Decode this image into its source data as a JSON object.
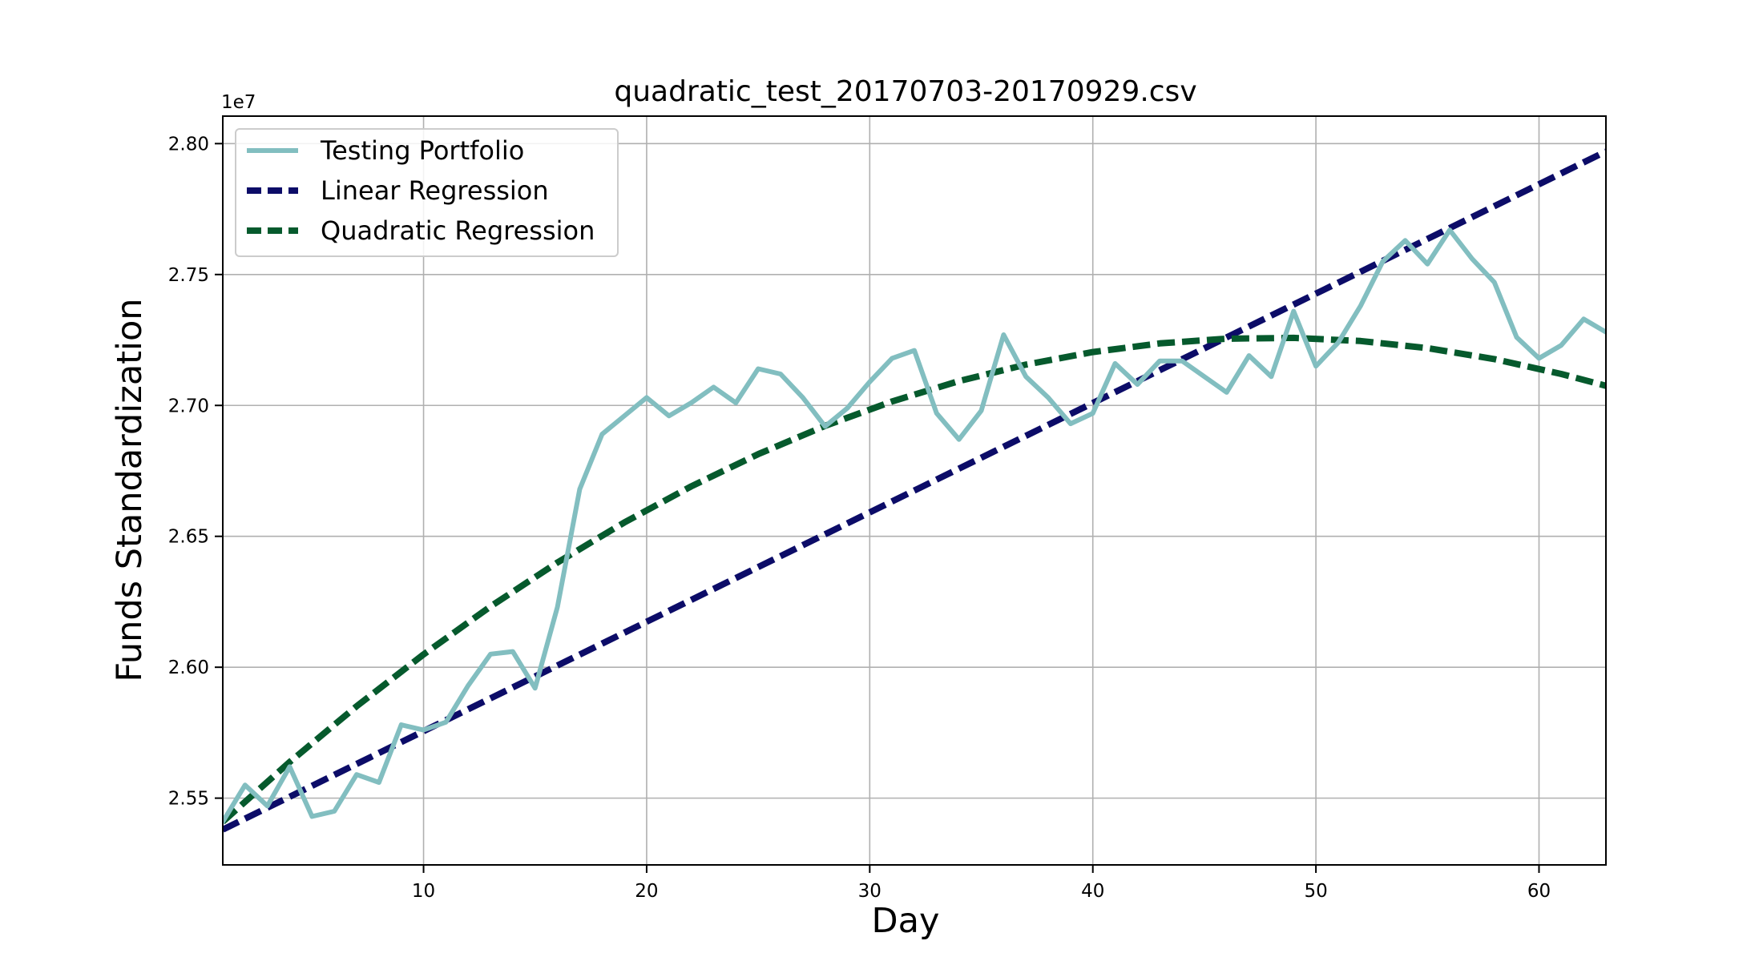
{
  "chart_data": {
    "type": "line",
    "title": "quadratic_test_20170703-20170929.csv",
    "xlabel": "Day",
    "ylabel": "Funds Standardization",
    "y_offset_label": "1e7",
    "xlim": [
      1,
      63
    ],
    "ylim": [
      25.245,
      28.105
    ],
    "x_ticks": [
      10,
      20,
      30,
      40,
      50,
      60
    ],
    "y_ticks": [
      25.5,
      26.0,
      26.5,
      27.0,
      27.5,
      28.0
    ],
    "y_tick_labels": [
      "2.55",
      "2.60",
      "2.65",
      "2.70",
      "2.75",
      "2.80"
    ],
    "grid": true,
    "legend_position": "upper left",
    "series": [
      {
        "name": "Testing Portfolio",
        "style": "solid",
        "color": "#82bec0",
        "x": [
          1,
          2,
          3,
          4,
          5,
          6,
          7,
          8,
          9,
          10,
          11,
          12,
          13,
          14,
          15,
          16,
          17,
          18,
          19,
          20,
          21,
          22,
          23,
          24,
          25,
          26,
          27,
          28,
          29,
          30,
          31,
          32,
          33,
          34,
          35,
          36,
          37,
          38,
          39,
          40,
          41,
          42,
          43,
          44,
          45,
          46,
          47,
          48,
          49,
          50,
          51,
          52,
          53,
          54,
          55,
          56,
          57,
          58,
          59,
          60,
          61,
          62,
          63
        ],
        "values": [
          25.41,
          25.55,
          25.47,
          25.62,
          25.43,
          25.45,
          25.59,
          25.56,
          25.78,
          25.76,
          25.79,
          25.93,
          26.05,
          26.06,
          25.92,
          26.23,
          26.68,
          26.89,
          26.96,
          27.03,
          26.96,
          27.01,
          27.07,
          27.01,
          27.14,
          27.12,
          27.03,
          26.92,
          26.99,
          27.09,
          27.18,
          27.21,
          26.97,
          26.87,
          26.98,
          27.27,
          27.11,
          27.03,
          26.93,
          26.97,
          27.16,
          27.08,
          27.17,
          27.17,
          27.11,
          27.05,
          27.19,
          27.11,
          27.36,
          27.15,
          27.24,
          27.38,
          27.55,
          27.63,
          27.54,
          27.67,
          27.56,
          27.47,
          27.26,
          27.18,
          27.23,
          27.33,
          27.28
        ]
      },
      {
        "name": "Linear Regression",
        "style": "dashed",
        "color": "#0c0c68",
        "x": [
          1,
          63
        ],
        "values": [
          25.38,
          27.97
        ]
      },
      {
        "name": "Quadratic Regression",
        "style": "dashed",
        "color": "#065a2d",
        "x": [
          1,
          4,
          7,
          10,
          13,
          16,
          19,
          22,
          25,
          28,
          31,
          34,
          37,
          40,
          43,
          46,
          49,
          52,
          55,
          58,
          61,
          63
        ],
        "values": [
          25.41,
          25.638,
          25.851,
          26.049,
          26.232,
          26.4,
          26.553,
          26.691,
          26.814,
          26.922,
          27.015,
          27.093,
          27.156,
          27.204,
          27.237,
          27.255,
          27.258,
          27.246,
          27.219,
          27.177,
          27.12,
          27.075
        ]
      }
    ]
  }
}
